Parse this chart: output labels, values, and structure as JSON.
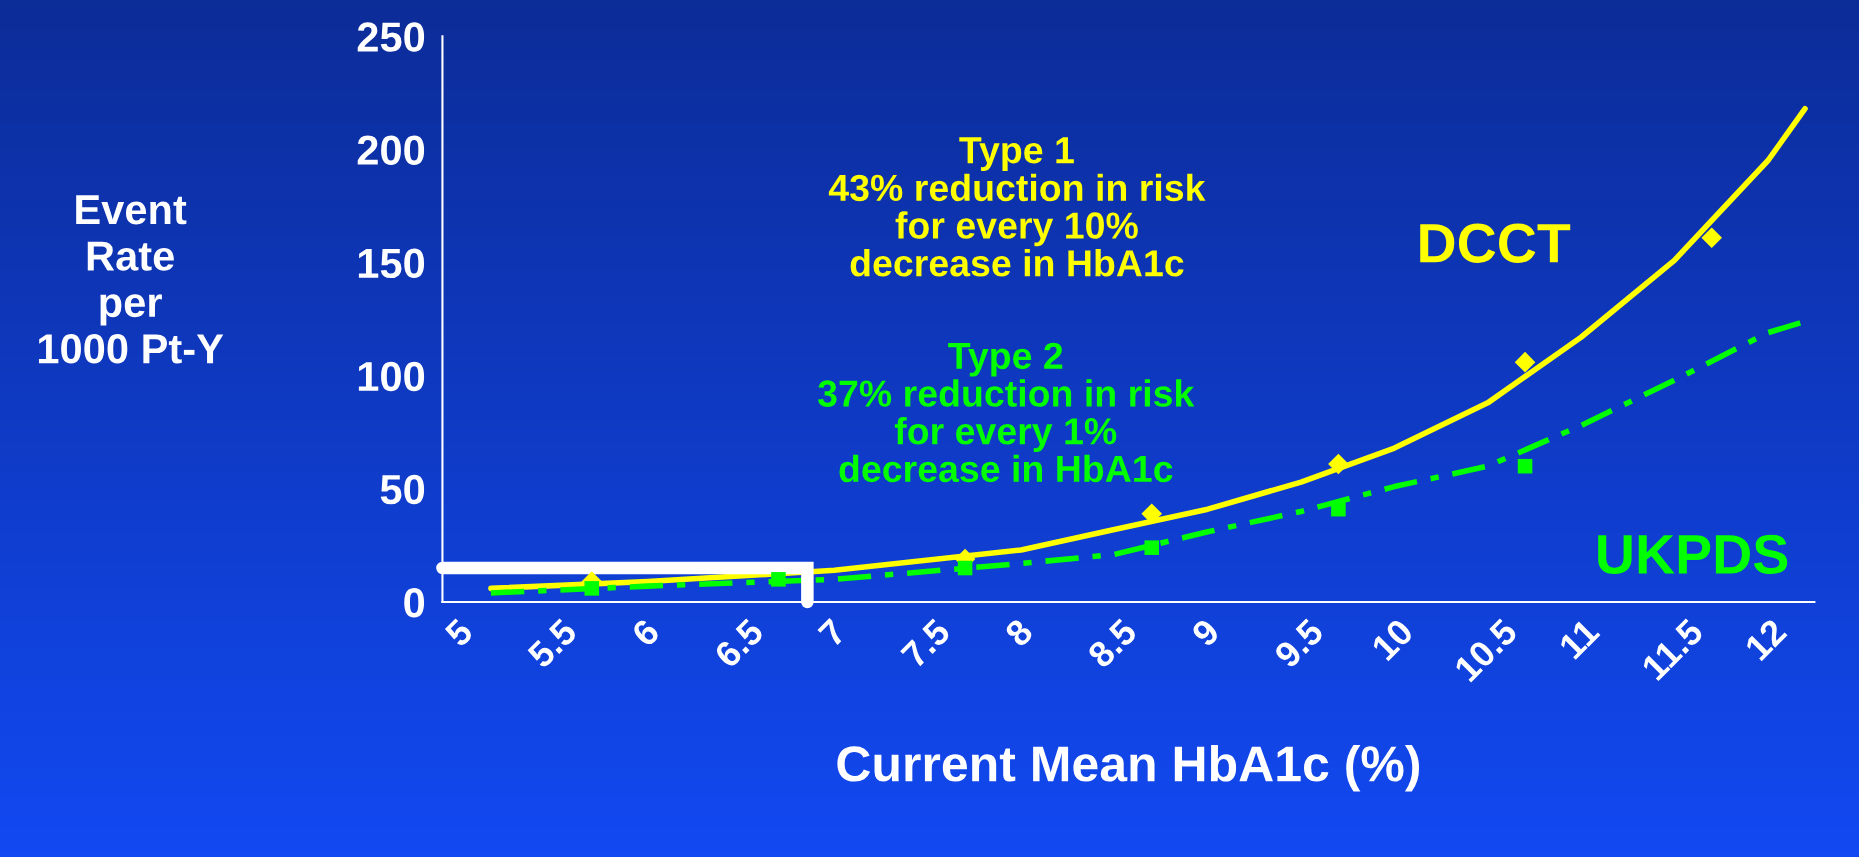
{
  "chart_data": {
    "type": "line",
    "xlabel": "Current Mean HbA1c (%)",
    "ylabel": "Event\nRate\nper\n1000 Pt-Y",
    "annotations": [
      "Type 1\n43% reduction in risk\nfor every 10%\ndecrease in HbA1c",
      "Type 2\n37% reduction in risk\nfor every 1%\ndecrease in HbA1c"
    ],
    "series": [
      {
        "name": "DCCT",
        "color": "#ffff00",
        "line_style": "solid",
        "marker": "none",
        "x": [
          5.16,
          6,
          7,
          8,
          8.5,
          9,
          9.5,
          10,
          10.5,
          11,
          11.5,
          12,
          12.2
        ],
        "values": [
          6,
          9,
          14,
          23,
          32,
          41,
          53,
          68,
          88,
          117,
          151,
          195,
          218
        ]
      },
      {
        "name": "UKPDS",
        "color": "#00ff00",
        "line_style": "dashed",
        "marker": "none",
        "x": [
          5.16,
          6,
          7,
          8,
          8.5,
          9,
          9.5,
          10,
          10.5,
          11,
          11.5,
          12,
          12.2
        ],
        "values": [
          4,
          7,
          10,
          17,
          21,
          31,
          40,
          51,
          60,
          78,
          98,
          119,
          124
        ]
      },
      {
        "type": "scatter",
        "color": "#ffff00",
        "marker": "diamond",
        "x": [
          5.7,
          7.7,
          8.7,
          9.7,
          10.7,
          11.7
        ],
        "values": [
          9,
          19,
          39,
          61,
          106,
          161
        ]
      },
      {
        "type": "scatter",
        "color": "#00ff00",
        "marker": "square",
        "x": [
          5.7,
          6.7,
          7.7,
          8.7,
          9.7,
          10.7
        ],
        "values": [
          6,
          10,
          15,
          24,
          41,
          60
        ]
      }
    ],
    "xlim": [
      4.9,
      12.25
    ],
    "xticks": [
      5,
      5.5,
      6,
      6.5,
      7,
      7.5,
      8,
      8.5,
      9,
      9.5,
      10,
      10.5,
      11,
      11.5,
      12
    ],
    "ylim": [
      0,
      250
    ],
    "yticks": [
      0,
      50,
      100,
      150,
      200,
      250
    ],
    "grid": false,
    "legend": false
  }
}
